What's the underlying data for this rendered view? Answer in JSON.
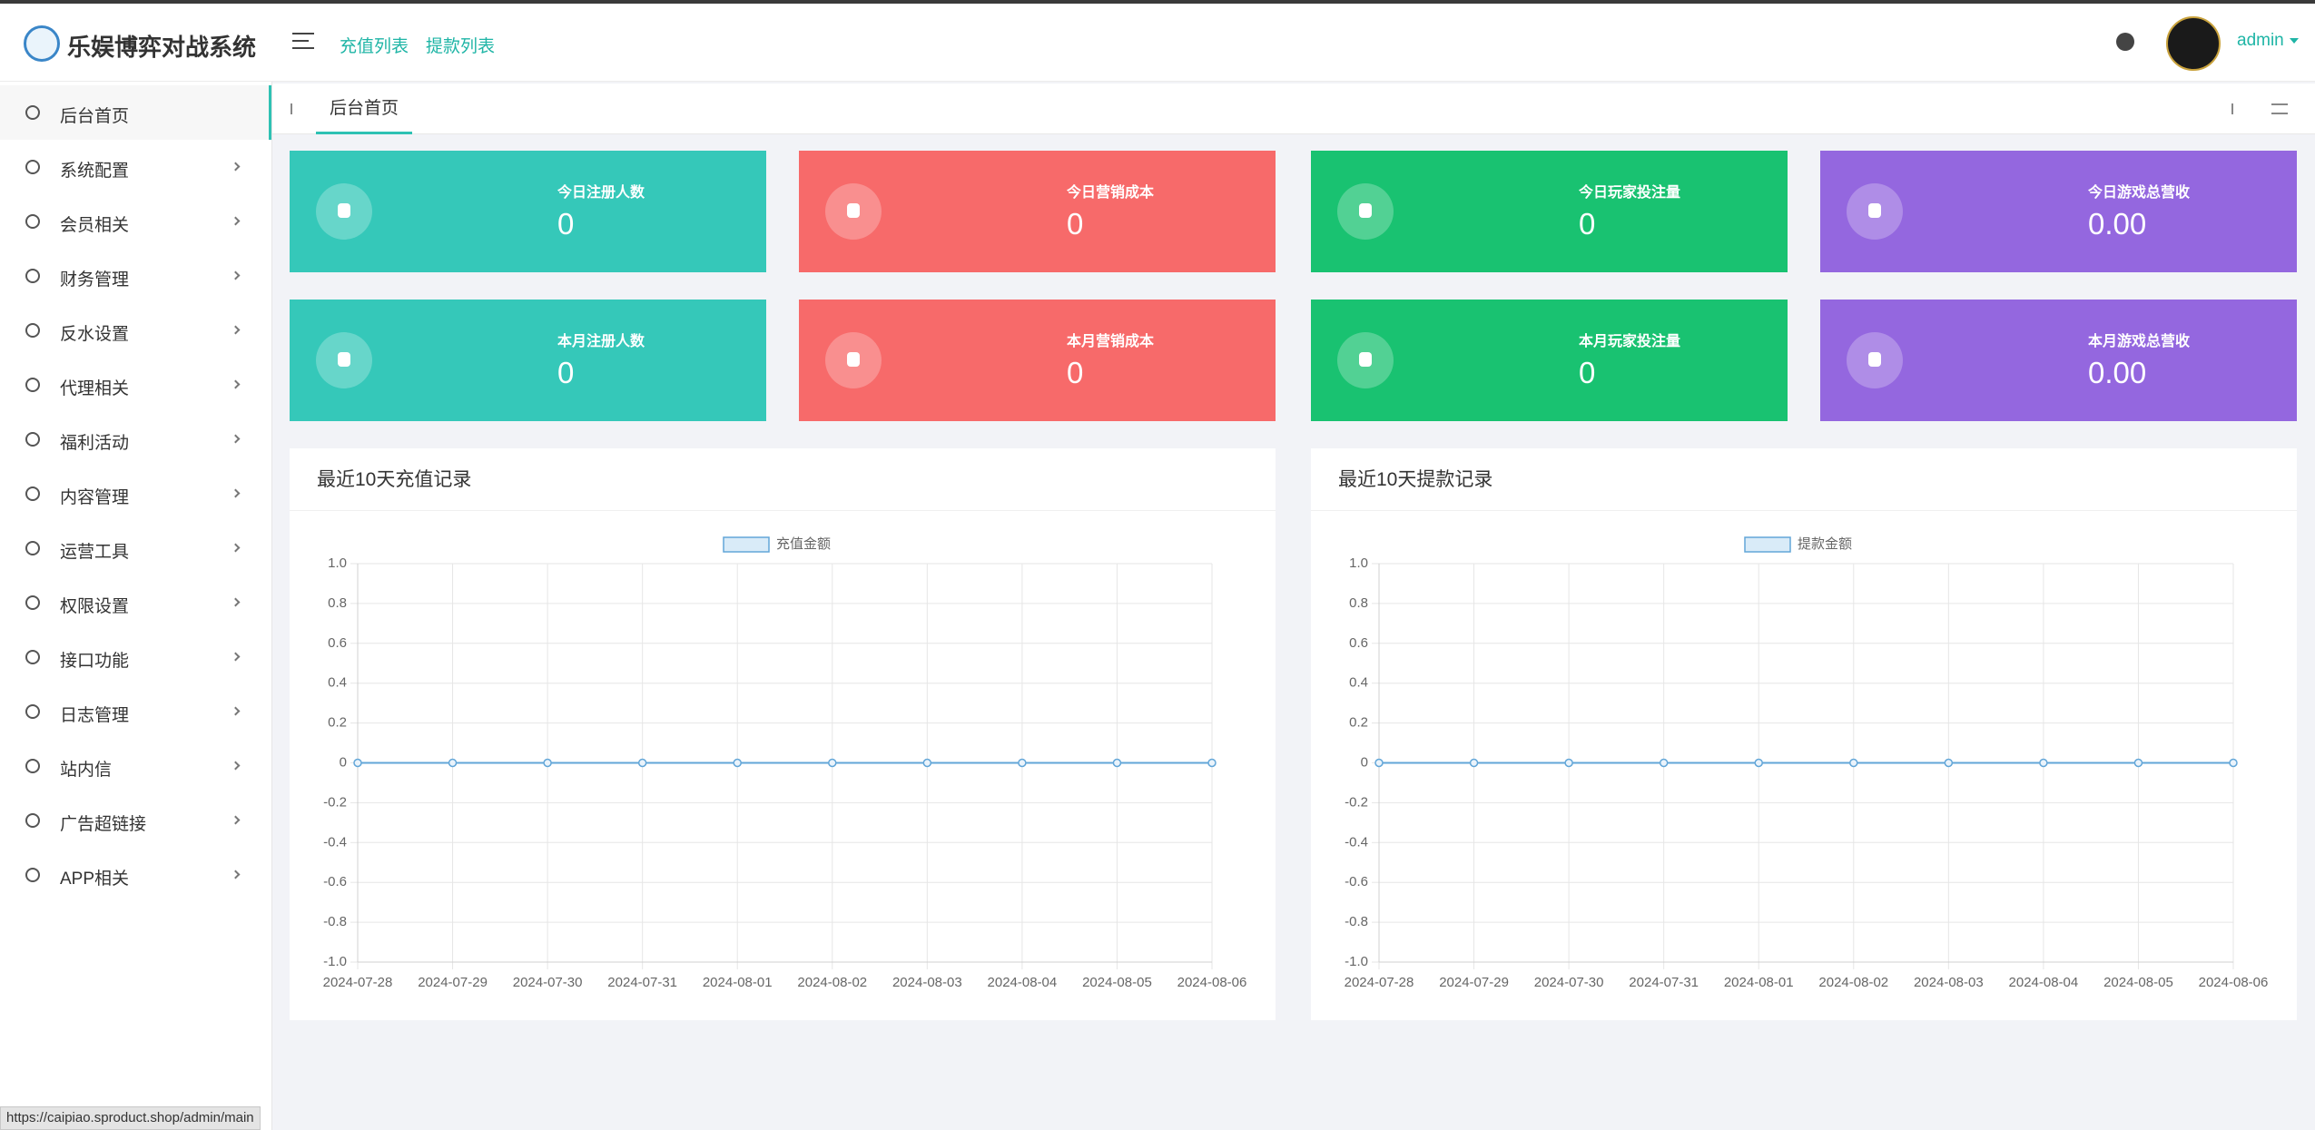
{
  "header": {
    "logo_text": "乐娱博弈对战系统",
    "nav": [
      "充值列表",
      "提款列表"
    ],
    "user": "admin"
  },
  "sidebar": {
    "items": [
      "后台首页",
      "系统配置",
      "会员相关",
      "财务管理",
      "反水设置",
      "代理相关",
      "福利活动",
      "内容管理",
      "运营工具",
      "权限设置",
      "接口功能",
      "日志管理",
      "站内信",
      "广告超链接",
      "APP相关"
    ]
  },
  "tabs": {
    "items": [
      "后台首页"
    ]
  },
  "stat_cards": [
    {
      "label": "今日注册人数",
      "value": "0",
      "color": "#35c8b9"
    },
    {
      "label": "今日营销成本",
      "value": "0",
      "color": "#f76a6a"
    },
    {
      "label": "今日玩家投注量",
      "value": "0",
      "color": "#19c271"
    },
    {
      "label": "今日游戏总营收",
      "value": "0.00",
      "color": "#9467df"
    },
    {
      "label": "本月注册人数",
      "value": "0",
      "color": "#35c8b9"
    },
    {
      "label": "本月营销成本",
      "value": "0",
      "color": "#f76a6a"
    },
    {
      "label": "本月玩家投注量",
      "value": "0",
      "color": "#19c271"
    },
    {
      "label": "本月游戏总营收",
      "value": "0.00",
      "color": "#9467df"
    }
  ],
  "chart_data": [
    {
      "type": "line",
      "title": "最近10天充值记录",
      "categories": [
        "2024-07-28",
        "2024-07-29",
        "2024-07-30",
        "2024-07-31",
        "2024-08-01",
        "2024-08-02",
        "2024-08-03",
        "2024-08-04",
        "2024-08-05",
        "2024-08-06"
      ],
      "series": [
        {
          "name": "充值金额",
          "color": "#62a6d8",
          "values": [
            0,
            0,
            0,
            0,
            0,
            0,
            0,
            0,
            0,
            0
          ]
        }
      ],
      "ylim": [
        -1,
        1
      ],
      "yticks": [
        {
          "value": -1,
          "label": "-1.0"
        },
        -0.8,
        -0.6,
        -0.4,
        -0.2,
        0,
        0.2,
        0.4,
        0.6,
        0.8,
        {
          "value": 1,
          "label": "1.0"
        }
      ],
      "grid": true,
      "legend": "top"
    },
    {
      "type": "line",
      "title": "最近10天提款记录",
      "categories": [
        "2024-07-28",
        "2024-07-29",
        "2024-07-30",
        "2024-07-31",
        "2024-08-01",
        "2024-08-02",
        "2024-08-03",
        "2024-08-04",
        "2024-08-05",
        "2024-08-06"
      ],
      "series": [
        {
          "name": "提款金额",
          "color": "#62a6d8",
          "values": [
            0,
            0,
            0,
            0,
            0,
            0,
            0,
            0,
            0,
            0
          ]
        }
      ],
      "ylim": [
        -1,
        1
      ],
      "yticks": [
        {
          "value": -1,
          "label": "-1.0"
        },
        -0.8,
        -0.6,
        -0.4,
        -0.2,
        0,
        0.2,
        0.4,
        0.6,
        0.8,
        {
          "value": 1,
          "label": "1.0"
        }
      ],
      "grid": true,
      "legend": "top"
    }
  ],
  "status_bar": {
    "url": "https://caipiao.sproduct.shop/admin/main"
  }
}
